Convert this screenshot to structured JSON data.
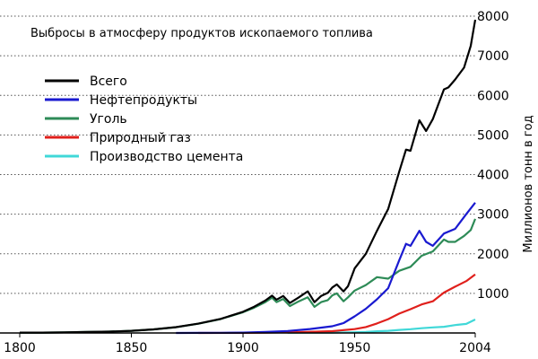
{
  "chart_data": {
    "type": "line",
    "title": "Выбросы в атмосферу продуктов ископаемого топлива",
    "xlabel": "",
    "ylabel": "Миллионов тонн в год",
    "xlim": [
      1800,
      2004
    ],
    "ylim": [
      0,
      8000
    ],
    "x_ticks": [
      "1800",
      "1850",
      "1900",
      "1950",
      "2004"
    ],
    "y_ticks": [
      "1000",
      "2000",
      "3000",
      "4000",
      "5000",
      "6000",
      "7000",
      "8000"
    ],
    "grid": "horizontal dotted",
    "legend_position": "top-left",
    "series": [
      {
        "name": "Всего",
        "color": "#000000",
        "points": [
          [
            1800,
            8
          ],
          [
            1810,
            10
          ],
          [
            1820,
            14
          ],
          [
            1830,
            24
          ],
          [
            1840,
            33
          ],
          [
            1850,
            54
          ],
          [
            1860,
            91
          ],
          [
            1870,
            147
          ],
          [
            1880,
            236
          ],
          [
            1890,
            356
          ],
          [
            1900,
            534
          ],
          [
            1905,
            663
          ],
          [
            1910,
            819
          ],
          [
            1913,
            943
          ],
          [
            1915,
            840
          ],
          [
            1918,
            934
          ],
          [
            1921,
            757
          ],
          [
            1925,
            900
          ],
          [
            1929,
            1051
          ],
          [
            1932,
            777
          ],
          [
            1935,
            936
          ],
          [
            1938,
            1013
          ],
          [
            1940,
            1150
          ],
          [
            1942,
            1225
          ],
          [
            1945,
            1050
          ],
          [
            1947,
            1180
          ],
          [
            1950,
            1630
          ],
          [
            1955,
            2000
          ],
          [
            1960,
            2580
          ],
          [
            1965,
            3130
          ],
          [
            1970,
            4080
          ],
          [
            1973,
            4630
          ],
          [
            1975,
            4600
          ],
          [
            1979,
            5370
          ],
          [
            1982,
            5100
          ],
          [
            1985,
            5400
          ],
          [
            1990,
            6150
          ],
          [
            1992,
            6200
          ],
          [
            1995,
            6400
          ],
          [
            1999,
            6700
          ],
          [
            2002,
            7250
          ],
          [
            2004,
            7910
          ]
        ]
      },
      {
        "name": "Нефтепродукты",
        "color": "#1a1ad0",
        "points": [
          [
            1870,
            1
          ],
          [
            1880,
            2
          ],
          [
            1890,
            4
          ],
          [
            1900,
            10
          ],
          [
            1910,
            25
          ],
          [
            1920,
            50
          ],
          [
            1930,
            100
          ],
          [
            1940,
            170
          ],
          [
            1945,
            250
          ],
          [
            1950,
            420
          ],
          [
            1955,
            610
          ],
          [
            1960,
            850
          ],
          [
            1965,
            1130
          ],
          [
            1970,
            1840
          ],
          [
            1973,
            2250
          ],
          [
            1975,
            2200
          ],
          [
            1979,
            2580
          ],
          [
            1982,
            2300
          ],
          [
            1985,
            2200
          ],
          [
            1990,
            2510
          ],
          [
            1995,
            2630
          ],
          [
            2000,
            3000
          ],
          [
            2004,
            3290
          ]
        ]
      },
      {
        "name": "Уголь",
        "color": "#2e8b57",
        "points": [
          [
            1800,
            8
          ],
          [
            1810,
            10
          ],
          [
            1820,
            14
          ],
          [
            1830,
            24
          ],
          [
            1840,
            33
          ],
          [
            1850,
            54
          ],
          [
            1860,
            91
          ],
          [
            1870,
            146
          ],
          [
            1880,
            234
          ],
          [
            1890,
            352
          ],
          [
            1900,
            523
          ],
          [
            1905,
            640
          ],
          [
            1910,
            780
          ],
          [
            1913,
            890
          ],
          [
            1915,
            780
          ],
          [
            1918,
            860
          ],
          [
            1921,
            680
          ],
          [
            1925,
            800
          ],
          [
            1929,
            900
          ],
          [
            1932,
            660
          ],
          [
            1935,
            780
          ],
          [
            1938,
            830
          ],
          [
            1940,
            950
          ],
          [
            1942,
            1000
          ],
          [
            1945,
            800
          ],
          [
            1947,
            900
          ],
          [
            1950,
            1070
          ],
          [
            1955,
            1210
          ],
          [
            1960,
            1410
          ],
          [
            1965,
            1370
          ],
          [
            1970,
            1570
          ],
          [
            1975,
            1670
          ],
          [
            1980,
            1950
          ],
          [
            1985,
            2060
          ],
          [
            1990,
            2360
          ],
          [
            1992,
            2300
          ],
          [
            1995,
            2300
          ],
          [
            1999,
            2450
          ],
          [
            2002,
            2600
          ],
          [
            2004,
            2880
          ]
        ]
      },
      {
        "name": "Природный газ",
        "color": "#e0201c",
        "points": [
          [
            1880,
            1
          ],
          [
            1900,
            3
          ],
          [
            1910,
            8
          ],
          [
            1920,
            15
          ],
          [
            1930,
            30
          ],
          [
            1940,
            45
          ],
          [
            1950,
            97
          ],
          [
            1955,
            150
          ],
          [
            1960,
            240
          ],
          [
            1965,
            350
          ],
          [
            1970,
            490
          ],
          [
            1975,
            600
          ],
          [
            1980,
            720
          ],
          [
            1985,
            800
          ],
          [
            1990,
            1020
          ],
          [
            1995,
            1170
          ],
          [
            2000,
            1310
          ],
          [
            2004,
            1480
          ]
        ]
      },
      {
        "name": "Производство цемента",
        "color": "#40d8d8",
        "points": [
          [
            1920,
            5
          ],
          [
            1930,
            8
          ],
          [
            1940,
            10
          ],
          [
            1950,
            18
          ],
          [
            1955,
            25
          ],
          [
            1960,
            43
          ],
          [
            1965,
            55
          ],
          [
            1970,
            78
          ],
          [
            1975,
            95
          ],
          [
            1980,
            120
          ],
          [
            1985,
            140
          ],
          [
            1990,
            157
          ],
          [
            1995,
            200
          ],
          [
            2000,
            230
          ],
          [
            2004,
            340
          ]
        ]
      }
    ]
  }
}
